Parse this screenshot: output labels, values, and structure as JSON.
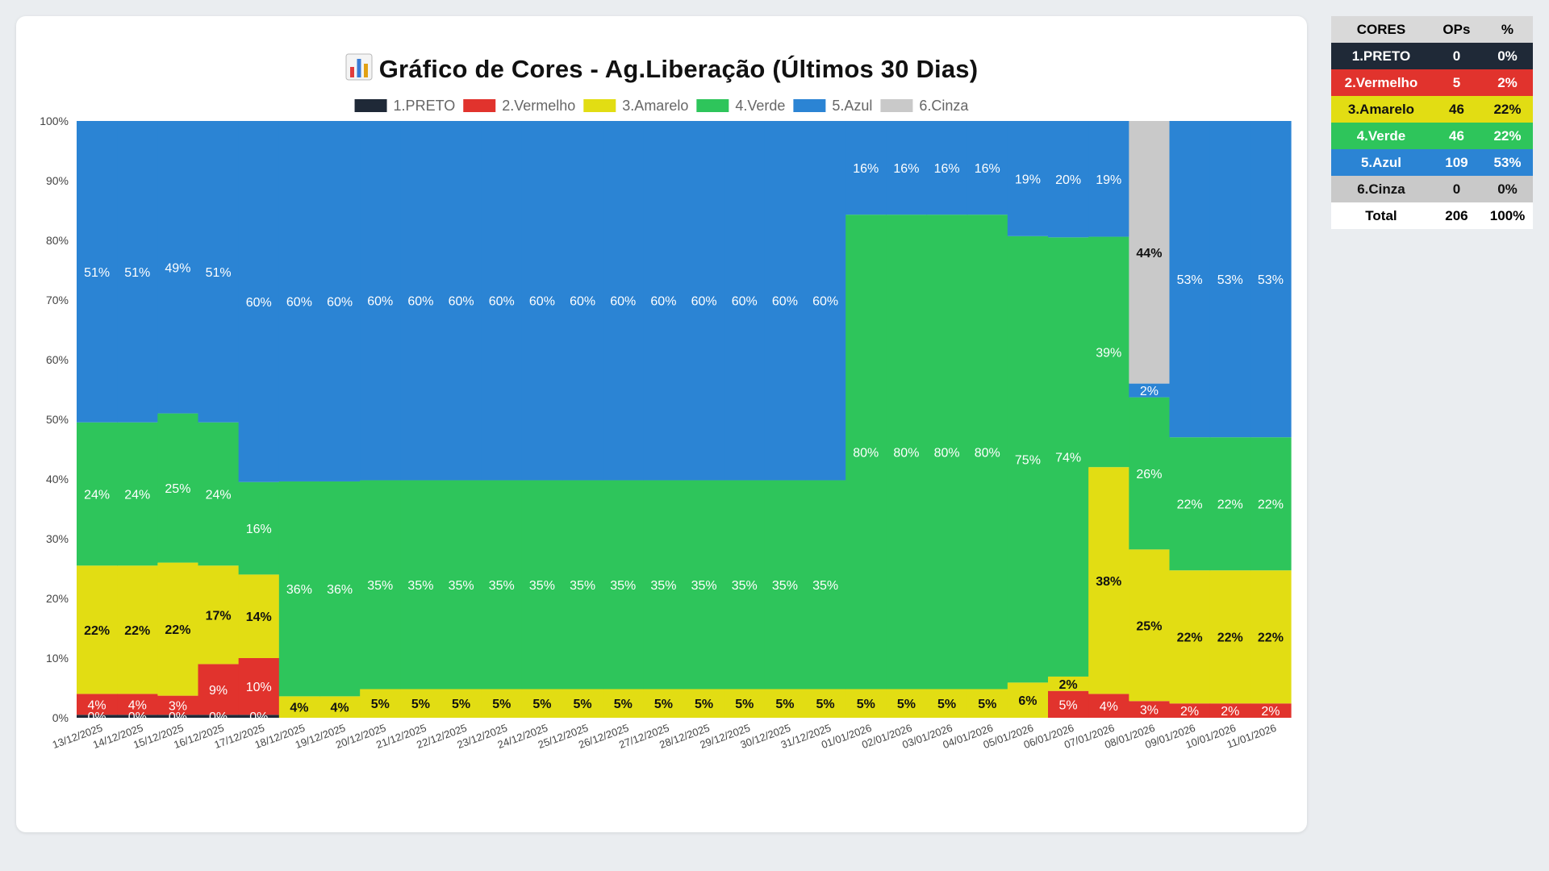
{
  "page": {
    "title_icon": "bar-chart-icon",
    "title": "Gráfico de Cores - Ag.Liberação (Últimos 30 Dias)"
  },
  "chart_data": {
    "type": "bar",
    "stacked": true,
    "normalized": true,
    "title": "Gráfico de Cores - Ag.Liberação (Últimos 30 Dias)",
    "ylim": [
      0,
      100
    ],
    "yticks": [
      "0%",
      "10%",
      "20%",
      "30%",
      "40%",
      "50%",
      "60%",
      "70%",
      "80%",
      "90%",
      "100%"
    ],
    "legend_position": "top",
    "categories": [
      "13/12/2025",
      "14/12/2025",
      "15/12/2025",
      "16/12/2025",
      "17/12/2025",
      "18/12/2025",
      "19/12/2025",
      "20/12/2025",
      "21/12/2025",
      "22/12/2025",
      "23/12/2025",
      "24/12/2025",
      "25/12/2025",
      "26/12/2025",
      "27/12/2025",
      "28/12/2025",
      "29/12/2025",
      "30/12/2025",
      "31/12/2025",
      "01/01/2026",
      "02/01/2026",
      "03/01/2026",
      "04/01/2026",
      "05/01/2026",
      "06/01/2026",
      "07/01/2026",
      "08/01/2026",
      "09/01/2026",
      "10/01/2026",
      "11/01/2026"
    ],
    "series": [
      {
        "name": "1.PRETO",
        "color": "#1f2937",
        "label_color": "#ffffff",
        "values": [
          0.5,
          0.5,
          0.5,
          0.5,
          0.5,
          0,
          0,
          0,
          0,
          0,
          0,
          0,
          0,
          0,
          0,
          0,
          0,
          0,
          0,
          0,
          0,
          0,
          0,
          0,
          0,
          0,
          0,
          0,
          0,
          0
        ],
        "labels": [
          "0%",
          "0%",
          "0%",
          "0%",
          "0%",
          "",
          "",
          "",
          "",
          "",
          "",
          "",
          "",
          "",
          "",
          "",
          "",
          "",
          "",
          "",
          "",
          "",
          "",
          "",
          "",
          "",
          "",
          "",
          "",
          ""
        ]
      },
      {
        "name": "2.Vermelho",
        "color": "#e1332d",
        "label_color": "#ffffff",
        "values": [
          3.5,
          3.5,
          3.2,
          8.5,
          9.5,
          0,
          0,
          0,
          0,
          0,
          0,
          0,
          0,
          0,
          0,
          0,
          0,
          0,
          0,
          0,
          0,
          0,
          0,
          0,
          4.5,
          4,
          2.8,
          2.4,
          2.4,
          2.4
        ],
        "labels": [
          "4%",
          "4%",
          "3%",
          "9%",
          "10%",
          "",
          "",
          "",
          "",
          "",
          "",
          "",
          "",
          "",
          "",
          "",
          "",
          "",
          "",
          "",
          "",
          "",
          "",
          "",
          "5%",
          "4%",
          "3%",
          "2%",
          "2%",
          "2%"
        ]
      },
      {
        "name": "3.Amarelo",
        "color": "#e2dd13",
        "label_color": "#111111",
        "values": [
          21.5,
          21.5,
          22.3,
          16.5,
          14,
          3.6,
          3.6,
          4.8,
          4.8,
          4.8,
          4.8,
          4.8,
          4.8,
          4.8,
          4.8,
          4.8,
          4.8,
          4.8,
          4.8,
          4.8,
          4.8,
          4.8,
          4.8,
          5.9,
          2.4,
          38,
          25.4,
          22.3,
          22.3,
          22.3
        ],
        "labels": [
          "22%",
          "22%",
          "22%",
          "17%",
          "14%",
          "4%",
          "4%",
          "5%",
          "5%",
          "5%",
          "5%",
          "5%",
          "5%",
          "5%",
          "5%",
          "5%",
          "5%",
          "5%",
          "5%",
          "5%",
          "5%",
          "5%",
          "5%",
          "6%",
          "2%",
          "38%",
          "25%",
          "22%",
          "22%",
          "22%"
        ]
      },
      {
        "name": "4.Verde",
        "color": "#2ec55b",
        "label_color": "#ffffff",
        "values": [
          24,
          24,
          25,
          24,
          15.5,
          36,
          36,
          35,
          35,
          35,
          35,
          35,
          35,
          35,
          35,
          35,
          35,
          35,
          35,
          79.5,
          79.5,
          79.5,
          79.5,
          74.8,
          73.6,
          38.6,
          25.5,
          22.3,
          22.3,
          22.3
        ],
        "labels": [
          "24%",
          "24%",
          "25%",
          "24%",
          "16%",
          "36%",
          "36%",
          "35%",
          "35%",
          "35%",
          "35%",
          "35%",
          "35%",
          "35%",
          "35%",
          "35%",
          "35%",
          "35%",
          "35%",
          "80%",
          "80%",
          "80%",
          "80%",
          "75%",
          "74%",
          "39%",
          "26%",
          "22%",
          "22%",
          "22%"
        ]
      },
      {
        "name": "5.Azul",
        "color": "#2b84d4",
        "label_color": "#ffffff",
        "values": [
          50.5,
          50.5,
          49,
          50.5,
          60.5,
          60.4,
          60.4,
          60.2,
          60.2,
          60.2,
          60.2,
          60.2,
          60.2,
          60.2,
          60.2,
          60.2,
          60.2,
          60.2,
          60.2,
          15.7,
          15.7,
          15.7,
          15.7,
          19.3,
          19.5,
          19.4,
          2.3,
          53,
          53,
          53
        ],
        "labels": [
          "51%",
          "51%",
          "49%",
          "51%",
          "60%",
          "60%",
          "60%",
          "60%",
          "60%",
          "60%",
          "60%",
          "60%",
          "60%",
          "60%",
          "60%",
          "60%",
          "60%",
          "60%",
          "60%",
          "16%",
          "16%",
          "16%",
          "16%",
          "19%",
          "20%",
          "19%",
          "2%",
          "53%",
          "53%",
          "53%"
        ]
      },
      {
        "name": "6.Cinza",
        "color": "#c9c9c9",
        "label_color": "#111111",
        "values": [
          0,
          0,
          0,
          0,
          0,
          0,
          0,
          0,
          0,
          0,
          0,
          0,
          0,
          0,
          0,
          0,
          0,
          0,
          0,
          0,
          0,
          0,
          0,
          0,
          0,
          0,
          44,
          0,
          0,
          0
        ],
        "labels": [
          "",
          "",
          "",
          "",
          "",
          "",
          "",
          "",
          "",
          "",
          "",
          "",
          "",
          "",
          "",
          "",
          "",
          "",
          "",
          "",
          "",
          "",
          "",
          "",
          "",
          "",
          "44%",
          "",
          "",
          ""
        ]
      }
    ]
  },
  "summary_table": {
    "headers": [
      "CORES",
      "OPs",
      "%"
    ],
    "rows": [
      {
        "name": "1.PRETO",
        "ops": "0",
        "pct": "0%",
        "bg": "#1f2937",
        "fg": "#ffffff"
      },
      {
        "name": "2.Vermelho",
        "ops": "5",
        "pct": "2%",
        "bg": "#e1332d",
        "fg": "#ffffff"
      },
      {
        "name": "3.Amarelo",
        "ops": "46",
        "pct": "22%",
        "bg": "#e2dd13",
        "fg": "#111111"
      },
      {
        "name": "4.Verde",
        "ops": "46",
        "pct": "22%",
        "bg": "#2ec55b",
        "fg": "#ffffff"
      },
      {
        "name": "5.Azul",
        "ops": "109",
        "pct": "53%",
        "bg": "#2b84d4",
        "fg": "#ffffff"
      },
      {
        "name": "6.Cinza",
        "ops": "0",
        "pct": "0%",
        "bg": "#c9c9c9",
        "fg": "#111111"
      },
      {
        "name": "Total",
        "ops": "206",
        "pct": "100%",
        "bg": "#ffffff",
        "fg": "#000000"
      }
    ]
  }
}
